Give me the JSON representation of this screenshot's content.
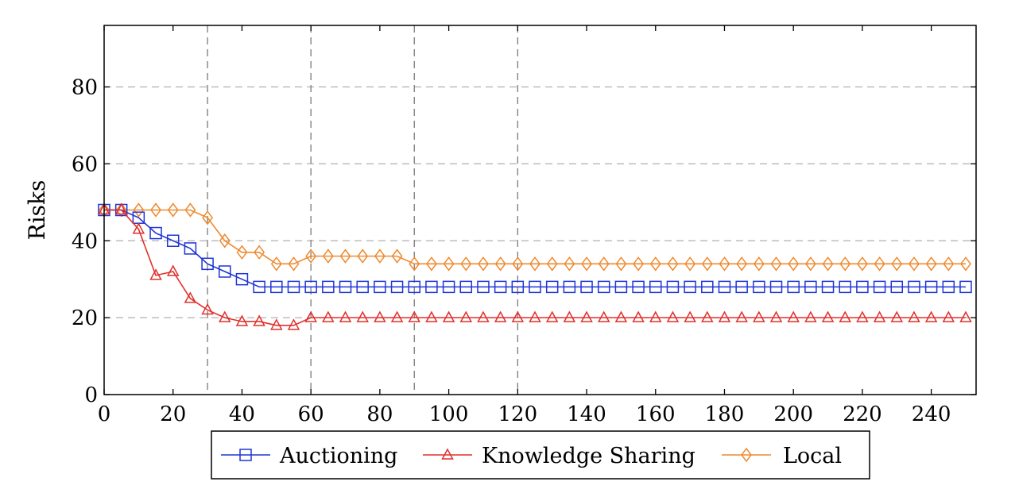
{
  "chart_data": {
    "type": "line",
    "title": "",
    "xlabel": "",
    "ylabel": "Risks",
    "xlim": [
      0,
      253
    ],
    "ylim": [
      0,
      96
    ],
    "xticks": [
      0,
      20,
      40,
      60,
      80,
      100,
      120,
      140,
      160,
      180,
      200,
      220,
      240
    ],
    "yticks": [
      0,
      20,
      40,
      60,
      80
    ],
    "xtick_labels": [
      "0",
      "20",
      "40",
      "60",
      "80",
      "100",
      "120",
      "140",
      "160",
      "180",
      "200",
      "220",
      "240"
    ],
    "ytick_labels": [
      "0",
      "20",
      "40",
      "60",
      "80"
    ],
    "grid": {
      "horizontal": [
        20,
        40,
        60,
        80
      ],
      "vertical": [
        30,
        60,
        90,
        120
      ]
    },
    "legend_position": "bottom-center",
    "x": [
      0,
      5,
      10,
      15,
      20,
      25,
      30,
      35,
      40,
      45,
      50,
      55,
      60,
      65,
      70,
      75,
      80,
      85,
      90,
      95,
      100,
      105,
      110,
      115,
      120,
      125,
      130,
      135,
      140,
      145,
      150,
      155,
      160,
      165,
      170,
      175,
      180,
      185,
      190,
      195,
      200,
      205,
      210,
      215,
      220,
      225,
      230,
      235,
      240,
      245,
      250
    ],
    "series": [
      {
        "name": "Auctioning",
        "color": "#1f35d6",
        "marker": "square",
        "values": [
          48,
          48,
          46,
          42,
          40,
          38,
          34,
          32,
          30,
          28,
          28,
          28,
          28,
          28,
          28,
          28,
          28,
          28,
          28,
          28,
          28,
          28,
          28,
          28,
          28,
          28,
          28,
          28,
          28,
          28,
          28,
          28,
          28,
          28,
          28,
          28,
          28,
          28,
          28,
          28,
          28,
          28,
          28,
          28,
          28,
          28,
          28,
          28,
          28,
          28,
          28
        ]
      },
      {
        "name": "Knowledge Sharing",
        "color": "#e0302a",
        "marker": "triangle",
        "values": [
          48,
          48,
          43,
          31,
          32,
          25,
          22,
          20,
          19,
          19,
          18,
          18,
          20,
          20,
          20,
          20,
          20,
          20,
          20,
          20,
          20,
          20,
          20,
          20,
          20,
          20,
          20,
          20,
          20,
          20,
          20,
          20,
          20,
          20,
          20,
          20,
          20,
          20,
          20,
          20,
          20,
          20,
          20,
          20,
          20,
          20,
          20,
          20,
          20,
          20,
          20
        ]
      },
      {
        "name": "Local",
        "color": "#ee8a30",
        "marker": "diamond",
        "values": [
          48,
          48,
          48,
          48,
          48,
          48,
          46,
          40,
          37,
          37,
          34,
          34,
          36,
          36,
          36,
          36,
          36,
          36,
          34,
          34,
          34,
          34,
          34,
          34,
          34,
          34,
          34,
          34,
          34,
          34,
          34,
          34,
          34,
          34,
          34,
          34,
          34,
          34,
          34,
          34,
          34,
          34,
          34,
          34,
          34,
          34,
          34,
          34,
          34,
          34,
          34
        ]
      }
    ]
  }
}
